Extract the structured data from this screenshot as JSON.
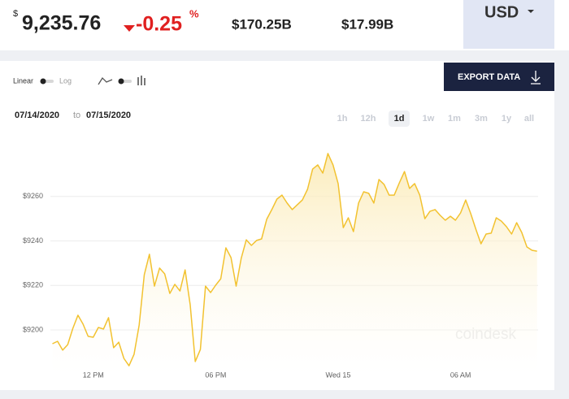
{
  "header": {
    "price_symbol": "$",
    "price": "9,235.76",
    "change": "-0.25",
    "change_unit": "%",
    "market_cap": "$170.25B",
    "volume": "$17.99B",
    "currency": "USD"
  },
  "controls": {
    "linear": "Linear",
    "log": "Log",
    "export": "EXPORT DATA",
    "date_from": "07/14/2020",
    "date_to_word": "to",
    "date_to": "07/15/2020",
    "ranges": [
      "1h",
      "12h",
      "1d",
      "1w",
      "1m",
      "3m",
      "1y",
      "all"
    ],
    "active_range": "1d"
  },
  "watermark": "coindesk",
  "chart_data": {
    "type": "area",
    "color": "#f2c230",
    "xlim": [
      9.9,
      33.8
    ],
    "ylim": [
      9180,
      9290
    ],
    "xticks": [
      {
        "value": 12,
        "label": "12 PM"
      },
      {
        "value": 18,
        "label": "06 PM"
      },
      {
        "value": 24,
        "label": "Wed 15"
      },
      {
        "value": 30,
        "label": "06 AM"
      }
    ],
    "yticks": [
      {
        "value": 9200,
        "label": "$9200"
      },
      {
        "value": 9220,
        "label": "$9220"
      },
      {
        "value": 9240,
        "label": "$9240"
      },
      {
        "value": 9260,
        "label": "$9260"
      }
    ],
    "grid": true,
    "x": [
      10,
      10.25,
      10.5,
      10.75,
      11,
      11.25,
      11.5,
      11.75,
      12,
      12.25,
      12.5,
      12.75,
      13,
      13.25,
      13.5,
      13.75,
      14,
      14.25,
      14.5,
      14.75,
      15,
      15.25,
      15.5,
      15.75,
      16,
      16.25,
      16.5,
      16.75,
      17,
      17.25,
      17.5,
      17.75,
      18,
      18.25,
      18.5,
      18.75,
      19,
      19.25,
      19.5,
      19.75,
      20,
      20.25,
      20.5,
      20.75,
      21,
      21.25,
      21.5,
      21.75,
      22,
      22.25,
      22.5,
      22.75,
      23,
      23.25,
      23.5,
      23.75,
      24,
      24.25,
      24.5,
      24.75,
      25,
      25.25,
      25.5,
      25.75,
      26,
      26.25,
      26.5,
      26.75,
      27,
      27.25,
      27.5,
      27.75,
      28,
      28.25,
      28.5,
      28.75,
      29,
      29.25,
      29.5,
      29.75,
      30,
      30.25,
      30.5,
      30.75,
      31,
      31.25,
      31.5,
      31.75,
      32,
      32.25,
      32.5,
      32.75,
      33,
      33.25,
      33.5,
      33.75
    ],
    "values": [
      9193.8,
      9194.9,
      9190.9,
      9193.4,
      9200.7,
      9206.6,
      9202.6,
      9197.1,
      9196.7,
      9201.1,
      9200.4,
      9205.5,
      9192.0,
      9194.5,
      9187.2,
      9183.9,
      9189.0,
      9202.2,
      9224.8,
      9234.0,
      9219.7,
      9227.8,
      9225.2,
      9216.4,
      9220.5,
      9217.5,
      9227.0,
      9211.3,
      9185.8,
      9191.2,
      9219.7,
      9216.8,
      9220.1,
      9223.0,
      9236.9,
      9232.5,
      9219.7,
      9232.1,
      9240.5,
      9238.0,
      9240.2,
      9240.9,
      9249.7,
      9254.1,
      9258.8,
      9260.6,
      9257.0,
      9254.1,
      9256.3,
      9258.4,
      9263.2,
      9272.3,
      9274.2,
      9270.5,
      9279.3,
      9274.2,
      9265.8,
      9246.0,
      9250.4,
      9244.2,
      9257.0,
      9262.1,
      9261.4,
      9257.0,
      9267.6,
      9265.4,
      9260.6,
      9260.6,
      9266.1,
      9271.2,
      9263.6,
      9265.8,
      9260.6,
      9250.0,
      9253.3,
      9254.1,
      9251.5,
      9249.3,
      9251.1,
      9249.3,
      9252.6,
      9258.4,
      9252.2,
      9245.3,
      9238.7,
      9243.1,
      9243.5,
      9250.4,
      9248.9,
      9246.4,
      9243.1,
      9248.2,
      9243.8,
      9237.3,
      9235.8,
      9235.4
    ]
  }
}
